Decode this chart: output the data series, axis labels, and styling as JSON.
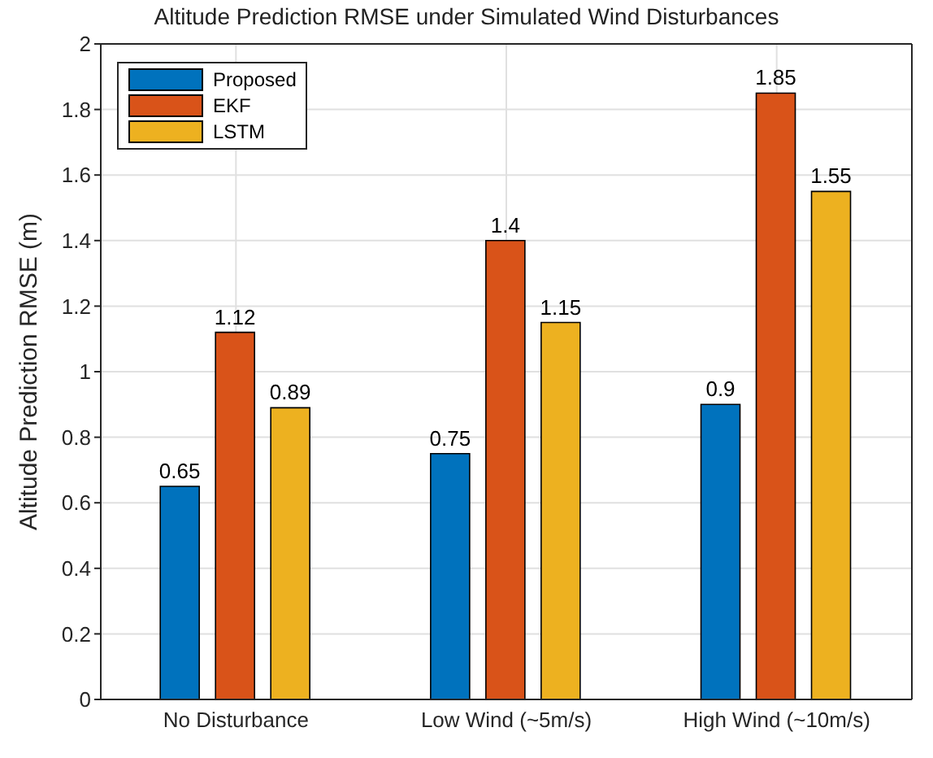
{
  "chart_data": {
    "type": "bar",
    "title": "Altitude Prediction RMSE under Simulated Wind Disturbances",
    "ylabel": "Altitude Prediction RMSE (m)",
    "categories": [
      "No Disturbance",
      "Low Wind (~5m/s)",
      "High Wind (~10m/s)"
    ],
    "series": [
      {
        "name": "Proposed",
        "color": "#0072bd",
        "values": [
          0.65,
          0.75,
          0.9
        ]
      },
      {
        "name": "EKF",
        "color": "#d95319",
        "values": [
          1.12,
          1.4,
          1.85
        ]
      },
      {
        "name": "LSTM",
        "color": "#edb120",
        "values": [
          0.89,
          1.15,
          1.55
        ]
      }
    ],
    "ylim": [
      0,
      2
    ],
    "yticks": [
      0,
      0.2,
      0.4,
      0.6,
      0.8,
      1,
      1.2,
      1.4,
      1.6,
      1.8,
      2
    ],
    "grid": true,
    "legend": "top left",
    "data_labels": true
  }
}
